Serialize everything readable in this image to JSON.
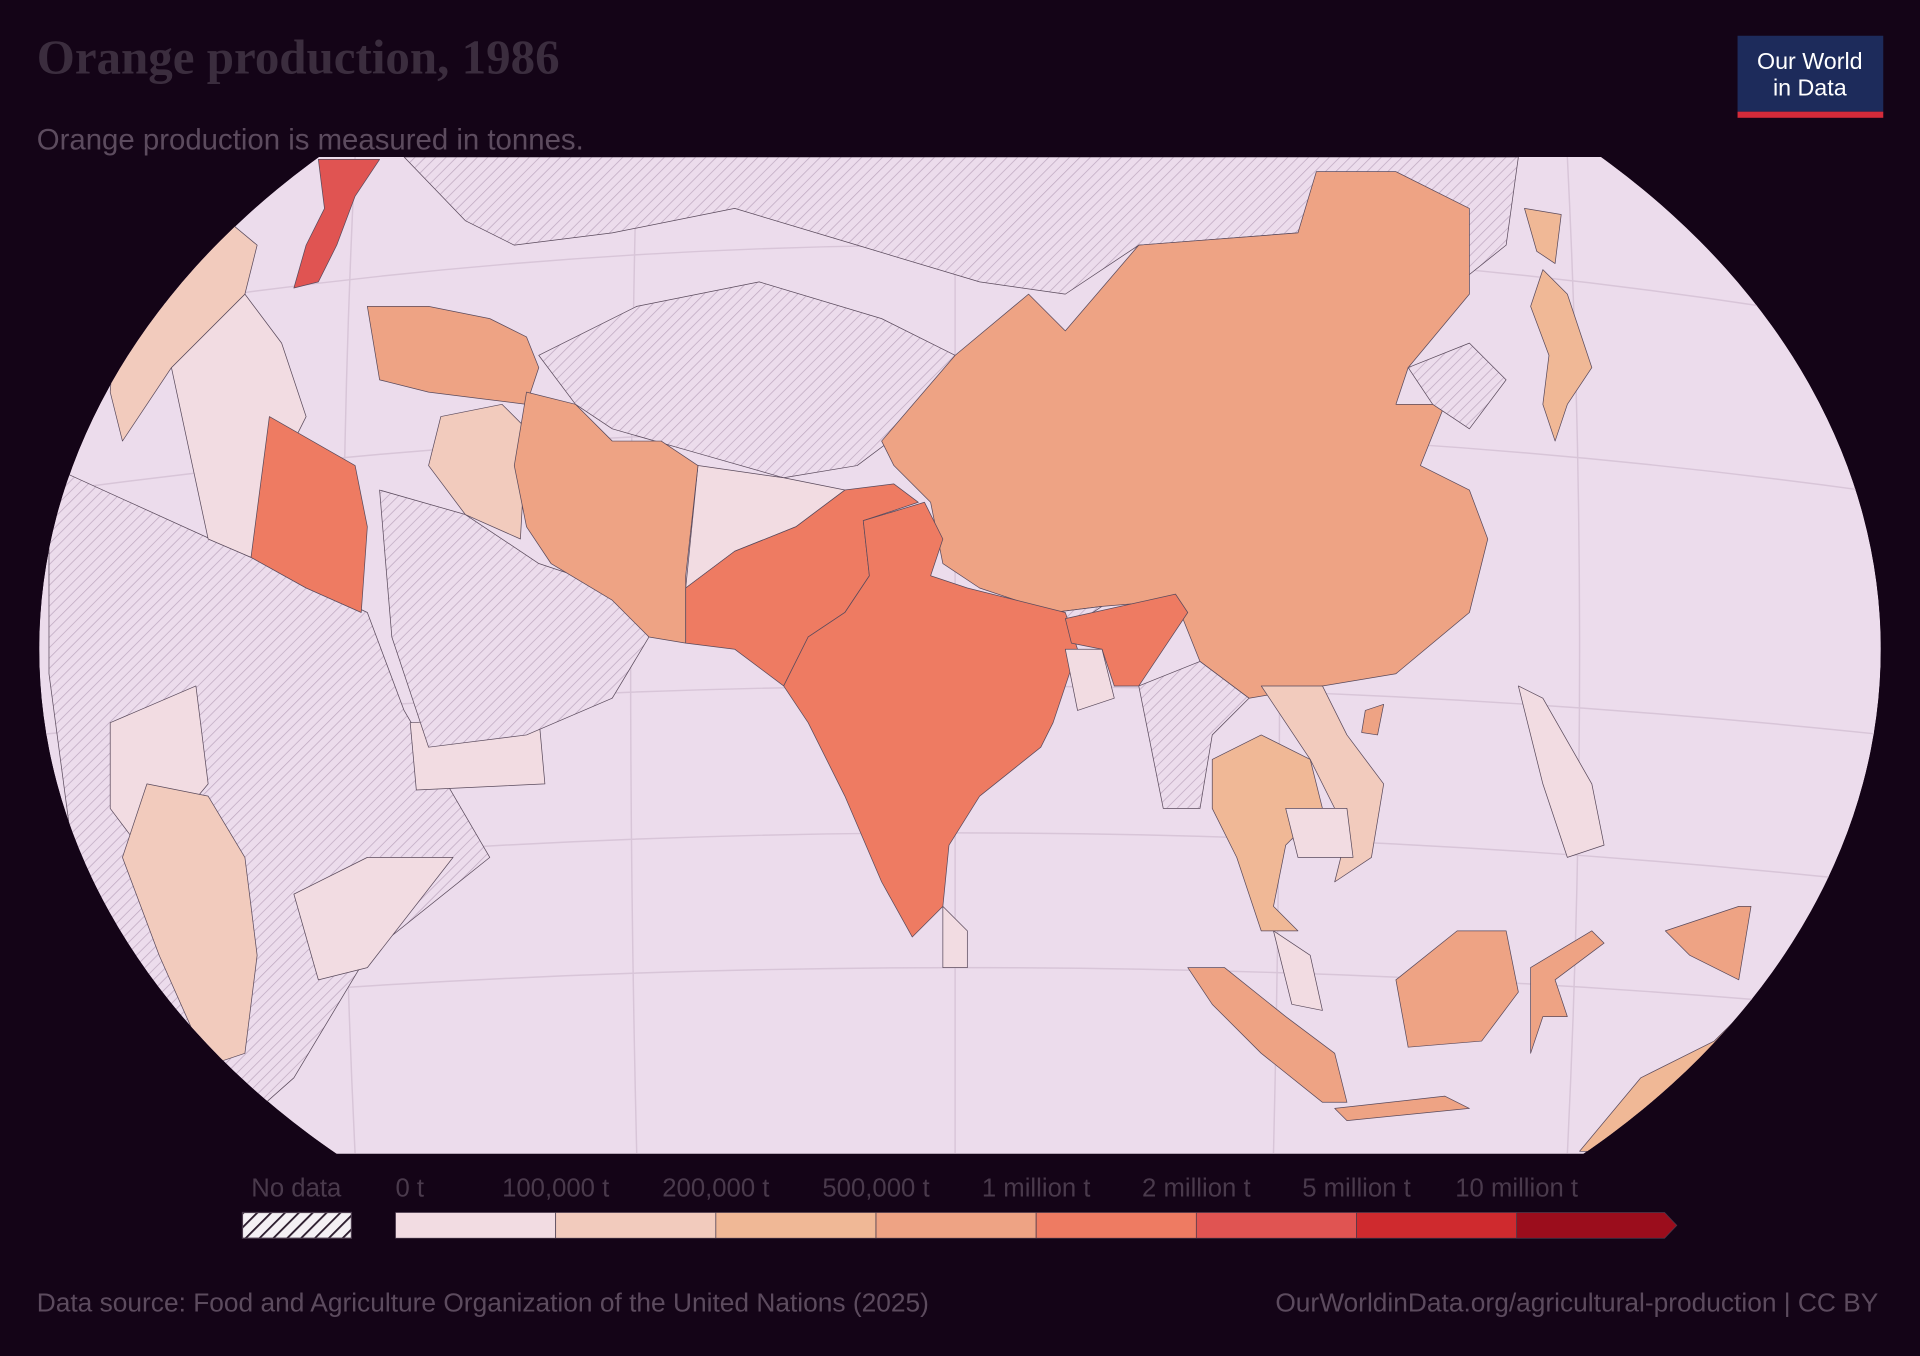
{
  "header": {
    "title": "Orange production, 1986",
    "subtitle": "Orange production is measured in tonnes."
  },
  "logo": {
    "line1": "Our World",
    "line2": "in Data"
  },
  "legend": {
    "no_data": "No data",
    "bins": [
      {
        "label": "0 t",
        "color": "#f2dce2"
      },
      {
        "label": "100,000 t",
        "color": "#f2cbbd"
      },
      {
        "label": "200,000 t",
        "color": "#f0b896"
      },
      {
        "label": "500,000 t",
        "color": "#eea384"
      },
      {
        "label": "1 million t",
        "color": "#ee7b62"
      },
      {
        "label": "2 million t",
        "color": "#e05452"
      },
      {
        "label": "5 million t",
        "color": "#cf2a2e"
      },
      {
        "label": "10 million t",
        "color": "#9b0d1c"
      }
    ]
  },
  "footer": {
    "source": "Data source: Food and Agriculture Organization of the United Nations (2025)",
    "url": "OurWorldinData.org/agricultural-production | CC BY"
  }
}
